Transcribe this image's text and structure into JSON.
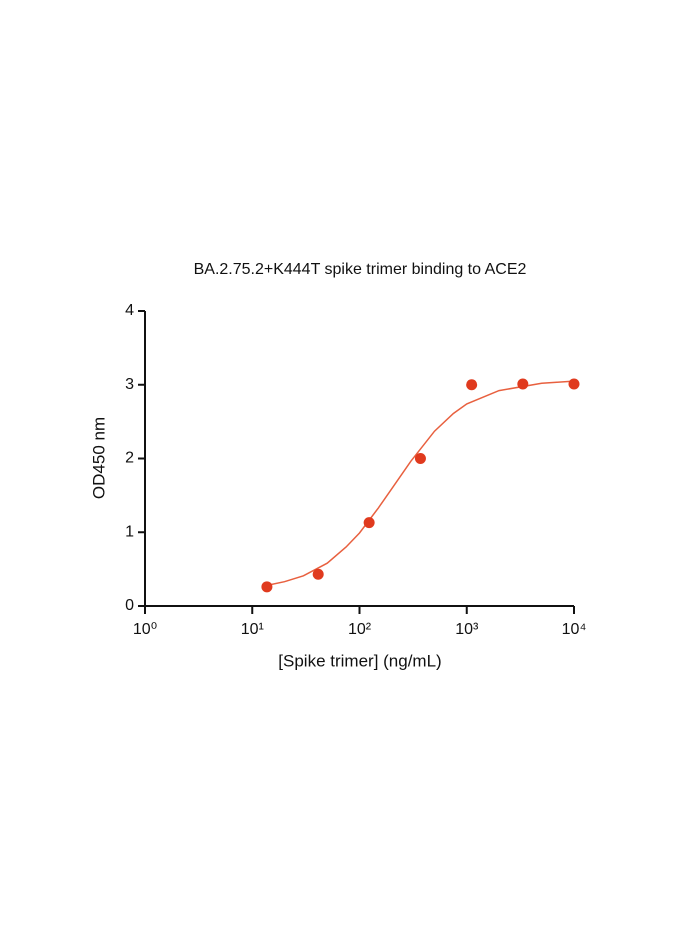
{
  "chart_data": {
    "type": "scatter",
    "title": "BA.2.75.2+K444T spike trimer binding to ACE2",
    "x_label": "[Spike trimer]  (ng/mL)",
    "y_label": "OD450 nm",
    "x_scale": "log",
    "xlim": [
      1,
      10000
    ],
    "xticks": [
      {
        "value": 1,
        "label": "10⁰"
      },
      {
        "value": 10,
        "label": "10¹"
      },
      {
        "value": 100,
        "label": "10²"
      },
      {
        "value": 1000,
        "label": "10³"
      },
      {
        "value": 10000,
        "label": "10⁴"
      }
    ],
    "ylim": [
      0,
      4
    ],
    "yticks": [
      0,
      1,
      2,
      3,
      4
    ],
    "series": [
      {
        "kind": "points",
        "color": "#e03a1e",
        "x": [
          13.7,
          41.2,
          123,
          370,
          1111,
          3333,
          10000
        ],
        "values": [
          0.26,
          0.43,
          1.13,
          2.0,
          3.0,
          3.01,
          3.01
        ]
      },
      {
        "kind": "line",
        "color": "#e8603f",
        "x": [
          13.7,
          20,
          30,
          50,
          75,
          100,
          150,
          200,
          300,
          500,
          750,
          1000,
          2000,
          5000,
          10000
        ],
        "values": [
          0.28,
          0.33,
          0.41,
          0.58,
          0.8,
          0.99,
          1.33,
          1.59,
          1.96,
          2.37,
          2.61,
          2.74,
          2.92,
          3.02,
          3.05
        ]
      }
    ]
  }
}
